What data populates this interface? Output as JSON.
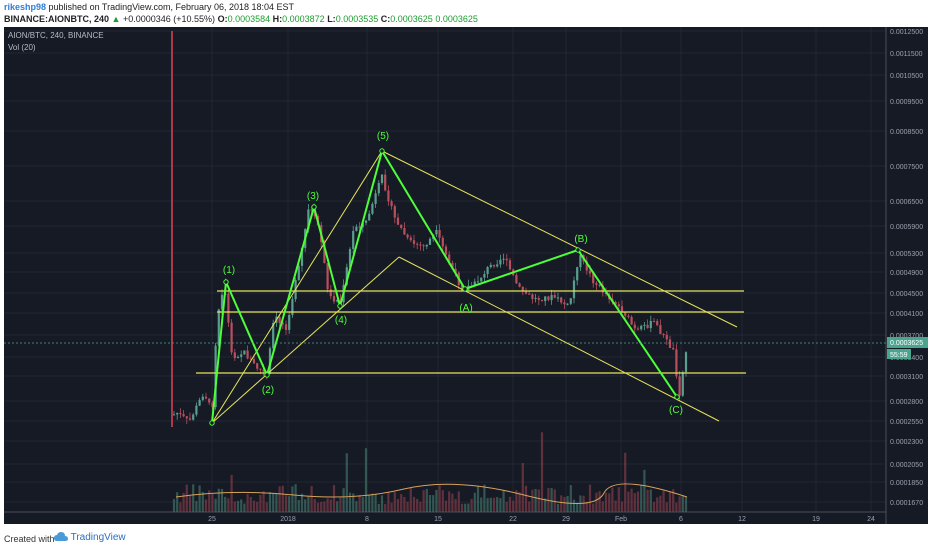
{
  "header": {
    "user": "rikeshp98",
    "published": " published on TradingView.com, February 06, 2018 18:04 EST",
    "symbol": "BINANCE:AIONBTC, 240",
    "change_arrow": "▲",
    "change": "+0.0000346 (+10.55%)",
    "o_label": "O:",
    "o": "0.0003584",
    "h_label": "H:",
    "h": "0.0003872",
    "l_label": "L:",
    "l": "0.0003535",
    "c_label": "C:",
    "c": "0.0003625",
    "main_price": "0.0003625"
  },
  "legend": {
    "line1": "AION/BTC, 240, BINANCE",
    "line2": "Vol (20)"
  },
  "footer": {
    "created": "Created with",
    "brand": "TradingView"
  },
  "colors": {
    "bg": "#161a25",
    "up": "#5a9e8e",
    "down": "#b94f5d",
    "wave": "#4cff38",
    "channel": "#e5e35a",
    "price": "#4aa58f"
  },
  "chart_data": {
    "type": "candlestick",
    "y_ticks": [
      "0.0012500",
      "0.0011500",
      "0.0010500",
      "0.0009500",
      "0.0008500",
      "0.0007500",
      "0.0006500",
      "0.0005900",
      "0.0005300",
      "0.0004900",
      "0.0004500",
      "0.0004100",
      "0.0003700",
      "0.0003400",
      "0.0003100",
      "0.0002800",
      "0.0002550",
      "0.0002300",
      "0.0002050",
      "0.0001850",
      "0.0001670"
    ],
    "x_ticks": [
      "25",
      "2018",
      "8",
      "15",
      "22",
      "29",
      "Feb",
      "6",
      "12",
      "19",
      "24"
    ],
    "current_price": "0.0003625",
    "countdown": "55:59",
    "wave_labels": [
      "(1)",
      "(2)",
      "(3)",
      "(4)",
      "(5)",
      "(A)",
      "(B)",
      "(C)"
    ],
    "horizontal_levels_approx": [
      0.000443,
      0.000412,
      0.000318
    ]
  }
}
